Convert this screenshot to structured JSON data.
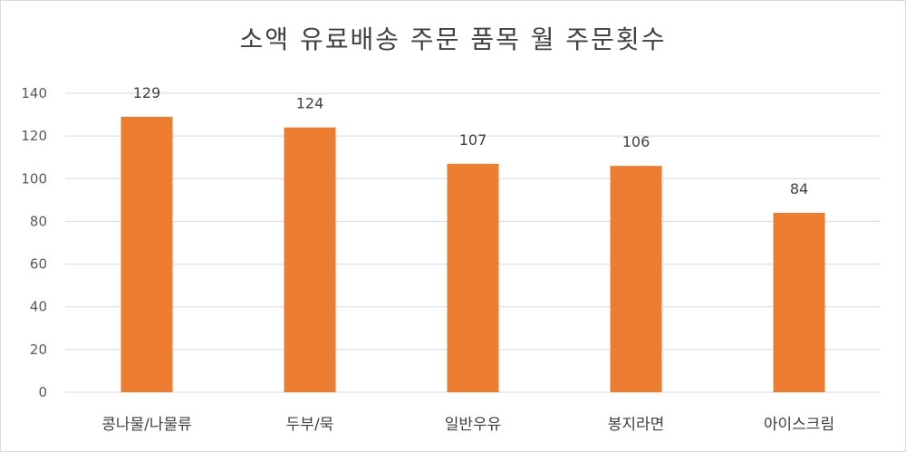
{
  "chart_data": {
    "type": "bar",
    "title": "소액 유료배송 주문 품목 월  주문횟수",
    "categories": [
      "콩나물/나물류",
      "두부/묵",
      "일반우유",
      "봉지라면",
      "아이스크림"
    ],
    "values": [
      129,
      124,
      107,
      106,
      84
    ],
    "ylim": [
      0,
      140
    ],
    "yticks": [
      0,
      20,
      40,
      60,
      80,
      100,
      120,
      140
    ],
    "grid": true,
    "bar_color": "#ED7D31",
    "xlabel": "",
    "ylabel": ""
  }
}
